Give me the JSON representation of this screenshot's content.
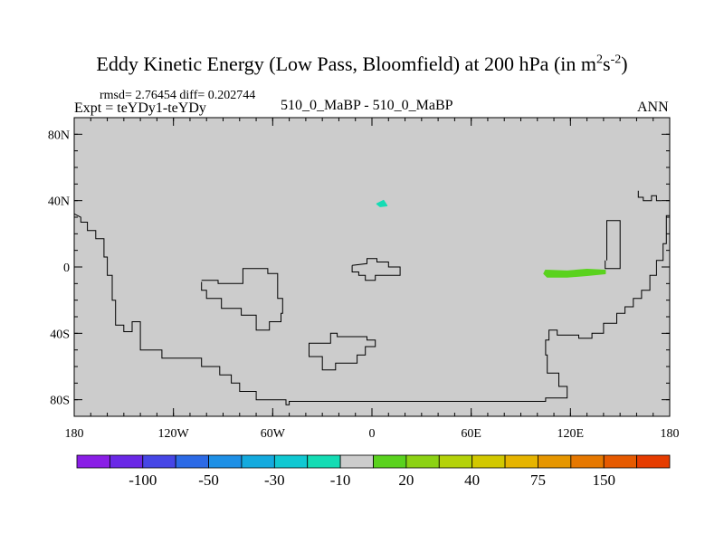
{
  "chart_data": {
    "type": "map",
    "title_prefix": "Eddy Kinetic Energy (Low Pass, Bloomfield) at 200 hPa (in m",
    "title_sup1": "2",
    "title_mid": "s",
    "title_sup2": "-2",
    "title_suffix": ")",
    "rmsd_label": "rmsd= 2.76454 diff= 0.202744",
    "expt_label": "Expt = teYDy1-teYDy",
    "center_label": "510_0_MaBP - 510_0_MaBP",
    "right_label": "ANN",
    "lon_range": [
      -180,
      180
    ],
    "lat_range": [
      -90,
      90
    ],
    "x_ticks": [
      {
        "value": -180,
        "label": "180"
      },
      {
        "value": -120,
        "label": "120W"
      },
      {
        "value": -60,
        "label": "60W"
      },
      {
        "value": 0,
        "label": "0"
      },
      {
        "value": 60,
        "label": "60E"
      },
      {
        "value": 120,
        "label": "120E"
      },
      {
        "value": 180,
        "label": "180"
      }
    ],
    "y_ticks": [
      {
        "value": 80,
        "label": "80N"
      },
      {
        "value": 40,
        "label": "40N"
      },
      {
        "value": 0,
        "label": "0"
      },
      {
        "value": -40,
        "label": "40S"
      },
      {
        "value": -80,
        "label": "80S"
      }
    ],
    "colorbar": {
      "colors": [
        "#8a1ee6",
        "#6a28e6",
        "#4646e6",
        "#2c6ae6",
        "#1e90e6",
        "#14aade",
        "#10c8d2",
        "#14dcb4",
        "#cccccc",
        "#5ad21e",
        "#8cd214",
        "#b4d20a",
        "#d2c800",
        "#e6b400",
        "#e69600",
        "#e67800",
        "#e65a00",
        "#e63c00"
      ],
      "labels": [
        {
          "boundary": 2,
          "text": "-100"
        },
        {
          "boundary": 4,
          "text": "-50"
        },
        {
          "boundary": 6,
          "text": "-30"
        },
        {
          "boundary": 8,
          "text": "-10"
        },
        {
          "boundary": 10,
          "text": "20"
        },
        {
          "boundary": 12,
          "text": "40"
        },
        {
          "boundary": 14,
          "text": "75"
        },
        {
          "boundary": 16,
          "text": "150"
        }
      ]
    },
    "anomalies": [
      {
        "name": "green-positive-anomaly",
        "color": "#5ad21e",
        "points": [
          [
            105,
            -2
          ],
          [
            118,
            -2.5
          ],
          [
            130,
            -1.5
          ],
          [
            141,
            -2
          ],
          [
            141,
            -4
          ],
          [
            130,
            -5
          ],
          [
            118,
            -6
          ],
          [
            106,
            -6
          ],
          [
            104,
            -4
          ]
        ]
      },
      {
        "name": "cyan-negative-anomaly",
        "color": "#14dcb4",
        "points": [
          [
            3,
            38
          ],
          [
            7,
            40
          ],
          [
            9,
            37
          ],
          [
            5,
            36.5
          ]
        ]
      }
    ],
    "coastlines": [
      {
        "name": "coastline-america",
        "points": [
          [
            -180,
            32
          ],
          [
            -176,
            30
          ],
          [
            -176,
            27
          ],
          [
            -172,
            27
          ],
          [
            -172,
            22
          ],
          [
            -167,
            22
          ],
          [
            -167,
            17
          ],
          [
            -162,
            17
          ],
          [
            -162,
            6
          ],
          [
            -160,
            6
          ],
          [
            -160,
            -5
          ],
          [
            -157,
            -5
          ],
          [
            -157,
            -20
          ],
          [
            -155,
            -20
          ],
          [
            -155,
            -35
          ],
          [
            -150,
            -35
          ],
          [
            -150,
            -39
          ],
          [
            -145,
            -39
          ],
          [
            -145,
            -33
          ],
          [
            -140,
            -33
          ],
          [
            -140,
            -50
          ],
          [
            -127,
            -50
          ],
          [
            -127,
            -55
          ],
          [
            -103,
            -55
          ],
          [
            -103,
            -60
          ],
          [
            -92,
            -60
          ],
          [
            -92,
            -65
          ],
          [
            -85,
            -65
          ],
          [
            -85,
            -70
          ],
          [
            -80,
            -70
          ],
          [
            -80,
            -75
          ],
          [
            -70,
            -75
          ],
          [
            -70,
            -80
          ],
          [
            -52,
            -80
          ],
          [
            -52,
            -83
          ],
          [
            -50,
            -83
          ],
          [
            -50,
            -81
          ],
          [
            -5,
            -81
          ],
          [
            -5,
            -81
          ],
          [
            105,
            -81
          ],
          [
            105,
            -79
          ],
          [
            118,
            -79
          ],
          [
            118,
            -72
          ],
          [
            113,
            -72
          ],
          [
            113,
            -64
          ],
          [
            106,
            -64
          ],
          [
            106,
            -53
          ],
          [
            105,
            -53
          ],
          [
            105,
            -44
          ],
          [
            107,
            -44
          ],
          [
            107,
            -38
          ],
          [
            112,
            -38
          ],
          [
            112,
            -41
          ],
          [
            125,
            -41
          ],
          [
            125,
            -43
          ],
          [
            133,
            -43
          ],
          [
            133,
            -40
          ],
          [
            140,
            -40
          ],
          [
            140,
            -34
          ],
          [
            148,
            -34
          ],
          [
            148,
            -28
          ],
          [
            153,
            -28
          ],
          [
            153,
            -24
          ],
          [
            158,
            -24
          ],
          [
            158,
            -19
          ],
          [
            163,
            -19
          ],
          [
            163,
            -14
          ],
          [
            168,
            -14
          ],
          [
            168,
            -5
          ],
          [
            172,
            -5
          ],
          [
            172,
            4
          ],
          [
            176,
            4
          ],
          [
            176,
            14
          ],
          [
            178,
            14
          ],
          [
            178,
            31
          ],
          [
            180,
            31
          ]
        ]
      },
      {
        "name": "coastline-africa",
        "points": [
          [
            -103,
            -9
          ],
          [
            -103,
            -14
          ],
          [
            -100,
            -14
          ],
          [
            -100,
            -19
          ],
          [
            -91,
            -19
          ],
          [
            -91,
            -25
          ],
          [
            -79,
            -25
          ],
          [
            -79,
            -29
          ],
          [
            -70,
            -29
          ],
          [
            -70,
            -38
          ],
          [
            -62,
            -38
          ],
          [
            -62,
            -33
          ],
          [
            -55,
            -33
          ],
          [
            -55,
            -28
          ],
          [
            -54,
            -28
          ],
          [
            -54,
            -19
          ],
          [
            -57,
            -19
          ],
          [
            -57,
            -4
          ],
          [
            -63,
            -4
          ],
          [
            -63,
            -1
          ],
          [
            -78,
            -1
          ],
          [
            -78,
            -10
          ],
          [
            -93,
            -10
          ],
          [
            -93,
            -8
          ],
          [
            -103,
            -8
          ]
        ]
      },
      {
        "name": "coastline-europe",
        "points": [
          [
            -12,
            1
          ],
          [
            -3,
            2
          ],
          [
            -3,
            5
          ],
          [
            3,
            5
          ],
          [
            3,
            3
          ],
          [
            10,
            3
          ],
          [
            10,
            0
          ],
          [
            17,
            0
          ],
          [
            17,
            -5
          ],
          [
            2,
            -5
          ],
          [
            2,
            -8
          ],
          [
            -4,
            -8
          ],
          [
            -4,
            -5
          ],
          [
            -8,
            -5
          ],
          [
            -8,
            -3
          ],
          [
            -12,
            -3
          ],
          [
            -12,
            1
          ]
        ]
      },
      {
        "name": "coastline-south-island",
        "points": [
          [
            -38,
            -48
          ],
          [
            -38,
            -54
          ],
          [
            -30,
            -54
          ],
          [
            -30,
            -62
          ],
          [
            -22,
            -62
          ],
          [
            -22,
            -58
          ],
          [
            -9,
            -58
          ],
          [
            -9,
            -53
          ],
          [
            -4,
            -53
          ],
          [
            -4,
            -48
          ],
          [
            2,
            -48
          ],
          [
            2,
            -44
          ],
          [
            -3,
            -44
          ],
          [
            -3,
            -42
          ],
          [
            -21,
            -42
          ],
          [
            -21,
            -40
          ],
          [
            -25,
            -40
          ],
          [
            -25,
            -46
          ],
          [
            -38,
            -46
          ],
          [
            -38,
            -48
          ]
        ]
      },
      {
        "name": "coastline-east-peninsula",
        "points": [
          [
            141,
            4
          ],
          [
            141,
            -1
          ],
          [
            150,
            -1
          ],
          [
            150,
            28
          ],
          [
            142,
            28
          ],
          [
            142,
            4
          ]
        ]
      },
      {
        "name": "coastline-northeast",
        "points": [
          [
            161,
            46
          ],
          [
            161,
            42
          ],
          [
            164,
            42
          ],
          [
            164,
            40
          ],
          [
            169,
            40
          ],
          [
            169,
            43
          ],
          [
            172,
            43
          ],
          [
            172,
            40
          ],
          [
            175,
            40
          ]
        ]
      }
    ]
  }
}
